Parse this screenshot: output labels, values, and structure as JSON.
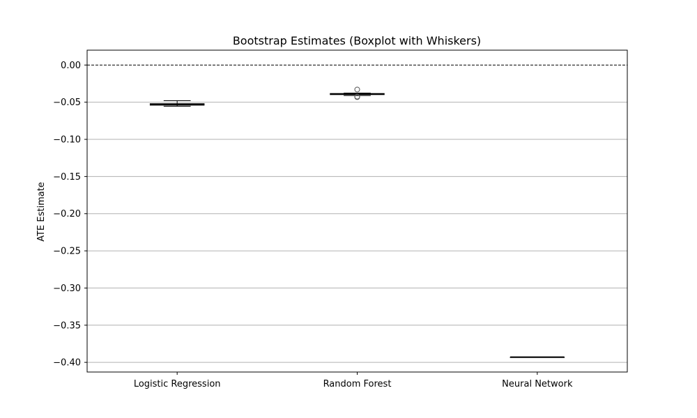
{
  "chart_data": {
    "type": "box",
    "title": "Bootstrap Estimates (Boxplot with Whiskers)",
    "xlabel": "",
    "ylabel": "ATE Estimate",
    "ylim": [
      -0.413,
      0.02
    ],
    "yticks": [
      0.0,
      -0.05,
      -0.1,
      -0.15,
      -0.2,
      -0.25,
      -0.3,
      -0.35,
      -0.4
    ],
    "ytick_labels": [
      "0.00",
      "−0.05",
      "−0.10",
      "−0.15",
      "−0.20",
      "−0.25",
      "−0.30",
      "−0.35",
      "−0.40"
    ],
    "grid": "horizontal",
    "reference_line": {
      "y": 0.0,
      "style": "dashed",
      "color": "#000000"
    },
    "categories": [
      "Logistic Regression",
      "Random Forest",
      "Neural Network"
    ],
    "boxes": [
      {
        "name": "Logistic Regression",
        "whisker_low": -0.0555,
        "q1": -0.054,
        "median": -0.053,
        "q3": -0.052,
        "whisker_high": -0.048,
        "outliers": []
      },
      {
        "name": "Random Forest",
        "whisker_low": -0.041,
        "q1": -0.0398,
        "median": -0.039,
        "q3": -0.0383,
        "whisker_high": -0.0378,
        "outliers": [
          -0.033,
          -0.0425,
          -0.0432
        ]
      },
      {
        "name": "Neural Network",
        "whisker_low": -0.393,
        "q1": -0.393,
        "median": -0.393,
        "q3": -0.393,
        "whisker_high": -0.393,
        "outliers": []
      }
    ],
    "colors": {
      "box_fill": "#c9b3e0",
      "median": "#000000",
      "grid": "#b0b0b0",
      "outlier_edge": "#555555"
    }
  }
}
